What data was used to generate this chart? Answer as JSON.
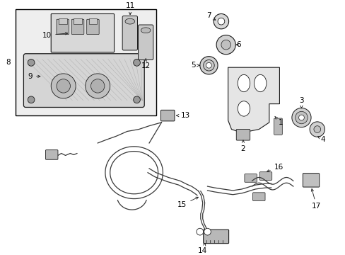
{
  "bg_color": "#ffffff",
  "line_color": "#1a1a1a",
  "text_color": "#000000",
  "fig_width": 4.89,
  "fig_height": 3.6,
  "dpi": 100
}
